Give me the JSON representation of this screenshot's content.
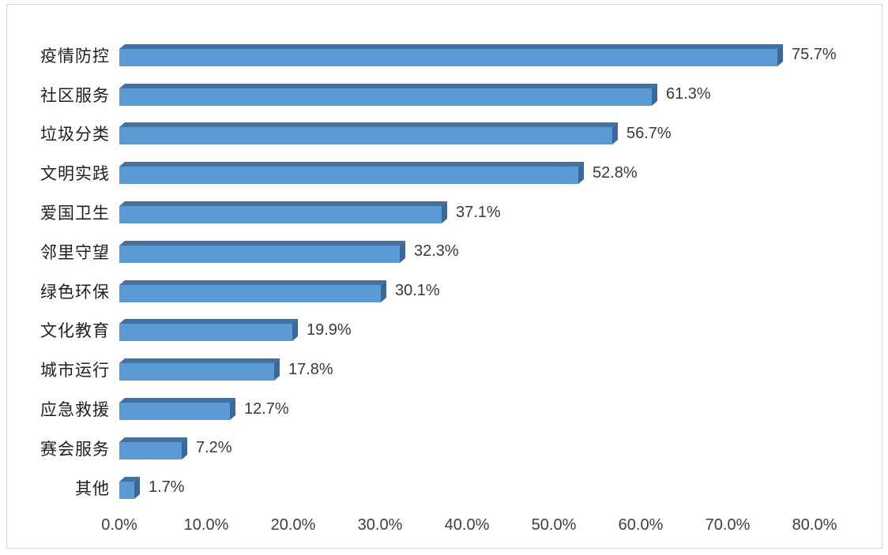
{
  "chart_data": {
    "type": "bar",
    "orientation": "horizontal",
    "title": "",
    "xlabel": "",
    "ylabel": "",
    "categories": [
      "疫情防控",
      "社区服务",
      "垃圾分类",
      "文明实践",
      "爱国卫生",
      "邻里守望",
      "绿色环保",
      "文化教育",
      "城市运行",
      "应急救援",
      "赛会服务",
      "其他"
    ],
    "values": [
      75.7,
      61.3,
      56.7,
      52.8,
      37.1,
      32.3,
      30.1,
      19.9,
      17.8,
      12.7,
      7.2,
      1.7
    ],
    "value_labels": [
      "75.7%",
      "61.3%",
      "56.7%",
      "52.8%",
      "37.1%",
      "32.3%",
      "30.1%",
      "19.9%",
      "17.8%",
      "12.7%",
      "7.2%",
      "1.7%"
    ],
    "x_ticks": [
      "0.0%",
      "10.0%",
      "20.0%",
      "30.0%",
      "40.0%",
      "50.0%",
      "60.0%",
      "70.0%",
      "80.0%"
    ],
    "xlim": [
      0,
      80
    ],
    "grid": false,
    "legend": false,
    "bar_style": "3d",
    "colors": {
      "bar_face": "#5b9bd5",
      "bar_top": "#46719c",
      "bar_side": "#3b689a",
      "category_label": "#1f1f1f",
      "value_label": "#3a3a3a",
      "axis_label": "#3f3f3f",
      "frame_border": "#d3d3d3",
      "background": "#ffffff"
    }
  }
}
